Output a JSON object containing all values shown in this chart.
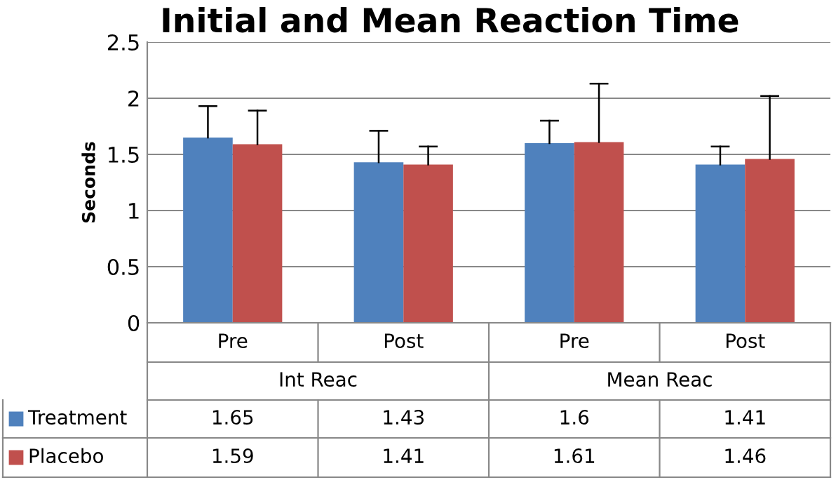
{
  "chart_data": {
    "type": "bar",
    "title": "Initial and Mean Reaction Time",
    "ylabel": "Seconds",
    "categories": [
      "Pre",
      "Post",
      "Pre",
      "Post"
    ],
    "annotations": [
      "Int Reac",
      "Mean Reac"
    ],
    "series": [
      {
        "name": "Treatment",
        "color": "#4f81bd",
        "values": [
          1.65,
          1.43,
          1.6,
          1.41
        ],
        "errors": [
          [
            1.65,
            1.93
          ],
          [
            1.43,
            1.71
          ],
          [
            1.6,
            1.8
          ],
          [
            1.41,
            1.57
          ]
        ]
      },
      {
        "name": "Placebo",
        "color": "#c0504d",
        "values": [
          1.59,
          1.41,
          1.61,
          1.46
        ],
        "errors": [
          [
            1.59,
            1.89
          ],
          [
            1.41,
            1.57
          ],
          [
            1.61,
            2.13
          ],
          [
            1.46,
            2.02
          ]
        ]
      }
    ],
    "ylim": [
      0,
      2.5
    ],
    "yticks": [
      0,
      0.5,
      1,
      1.5,
      2,
      2.5
    ],
    "grid": "y",
    "data_labels": true,
    "legend": "bottom"
  }
}
